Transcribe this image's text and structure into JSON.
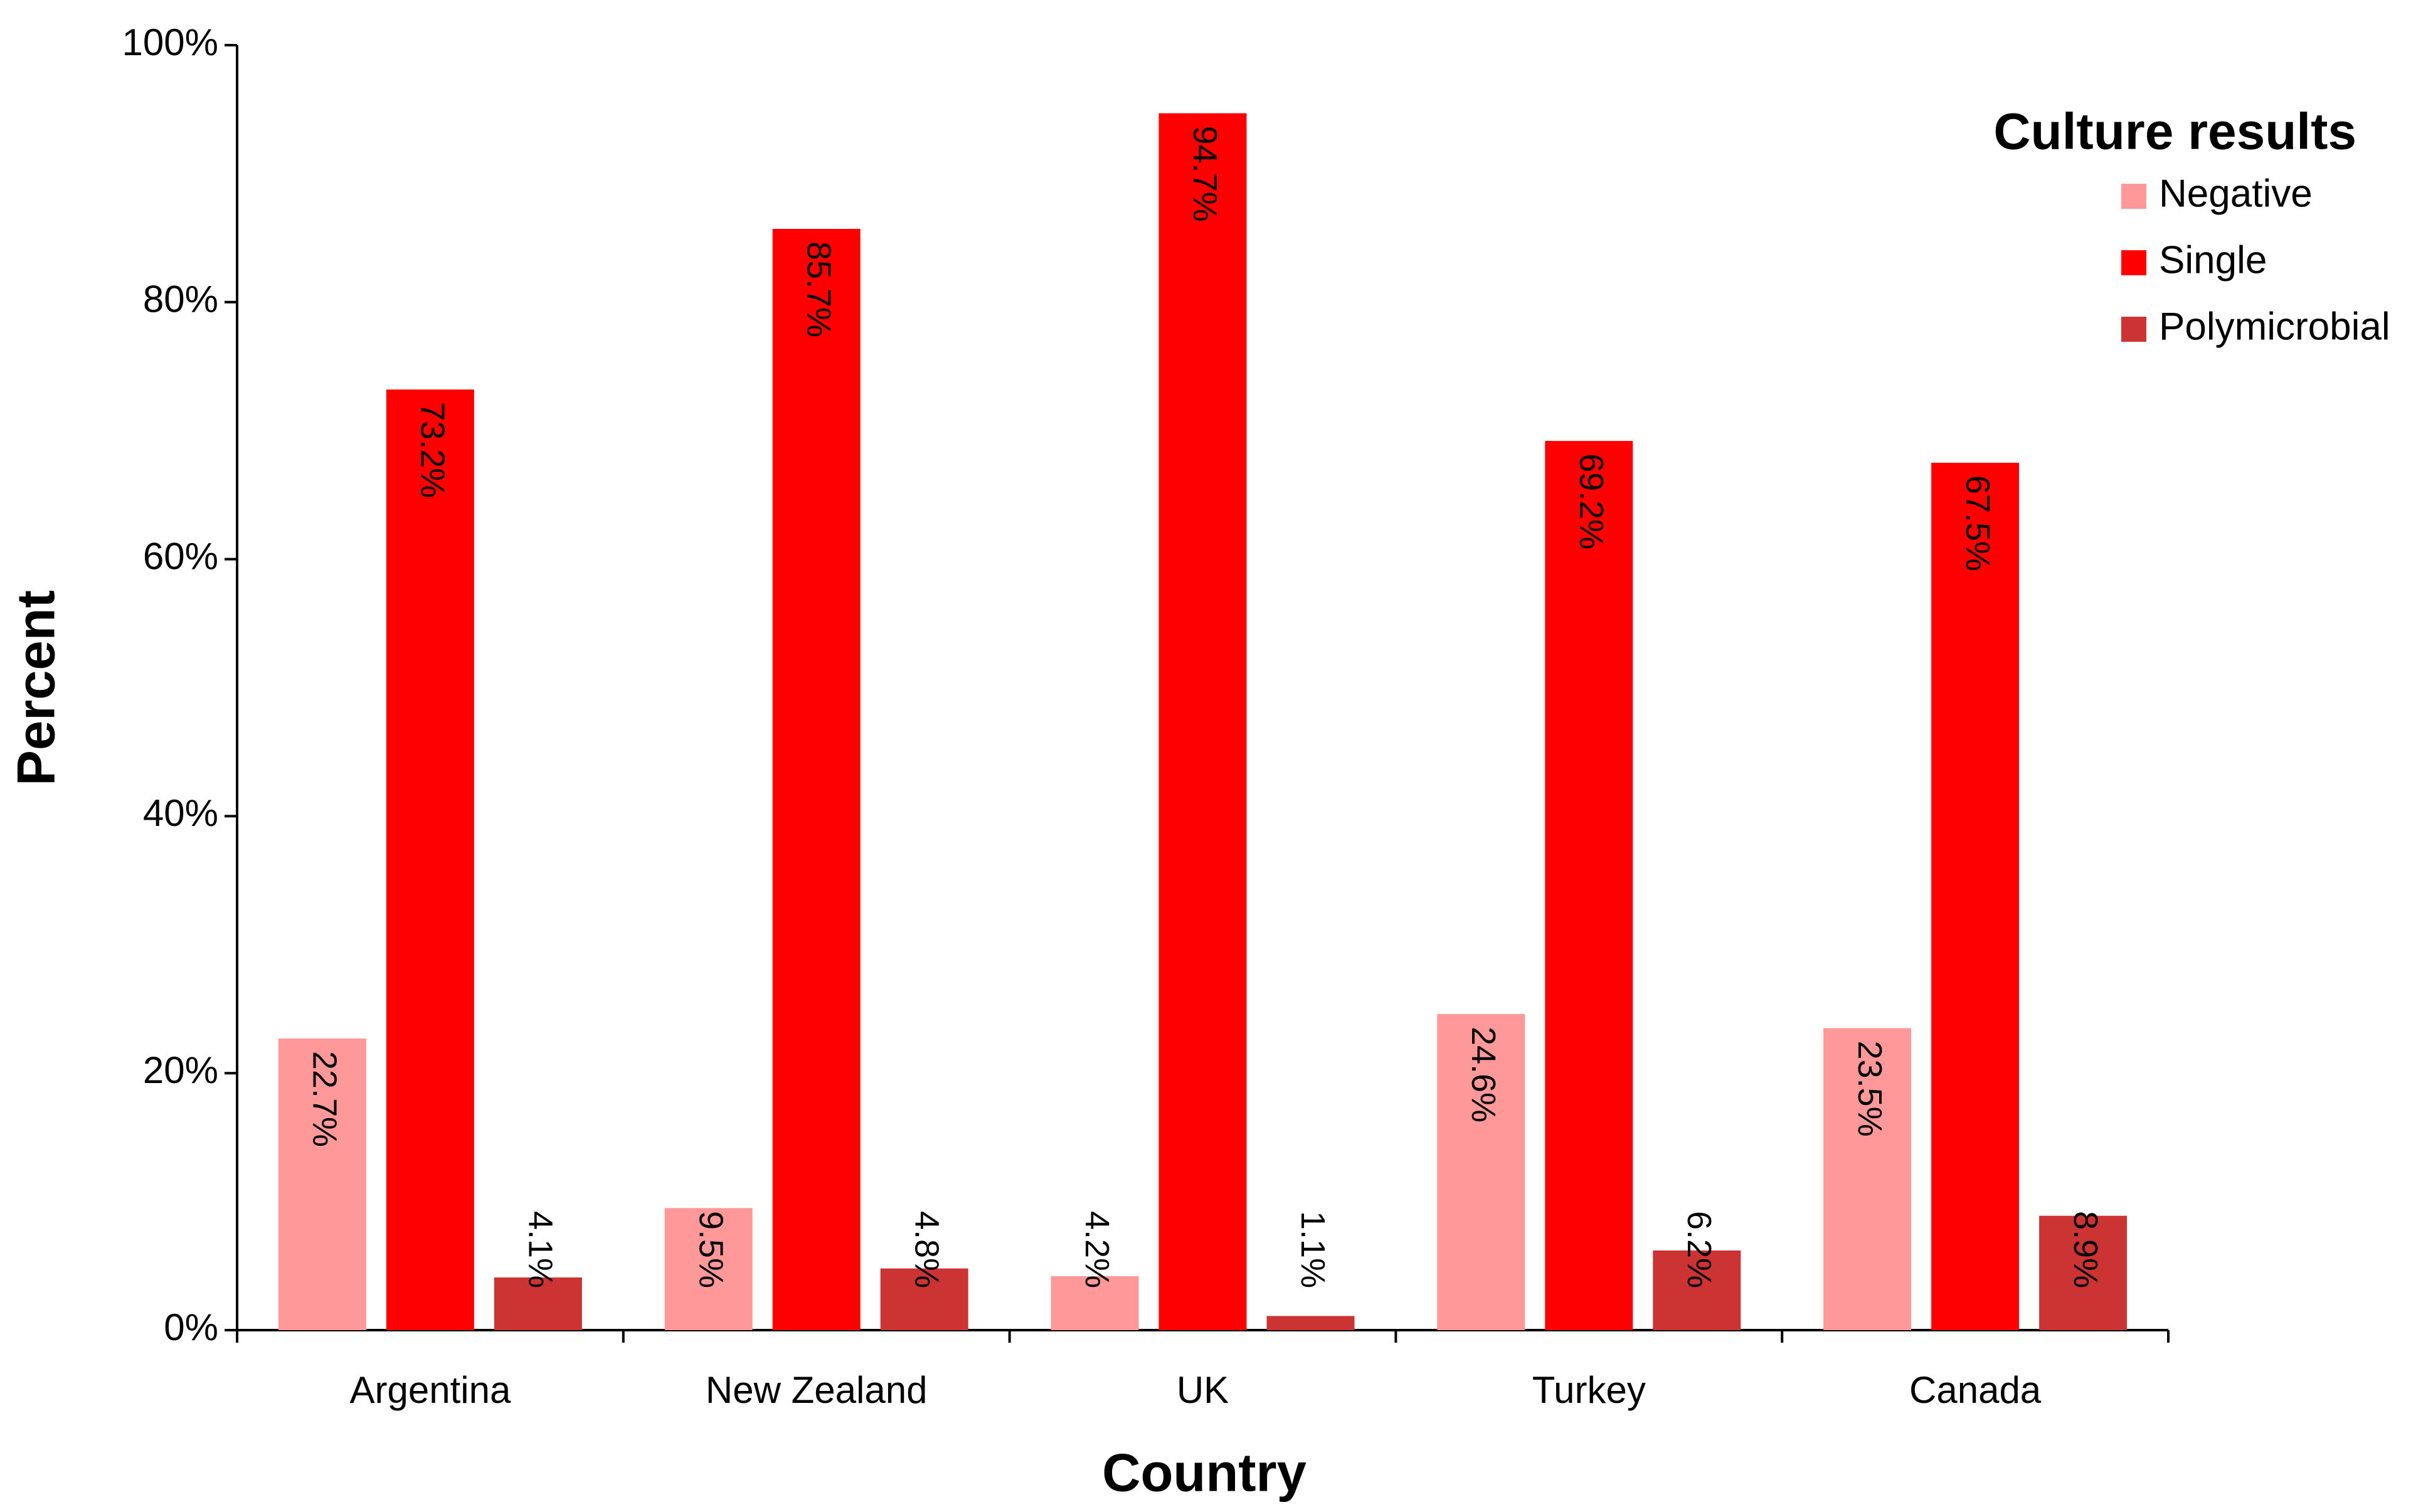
{
  "chart_data": {
    "type": "bar",
    "x_label": "Country",
    "y_label": "Percent",
    "legend_title": "Culture results",
    "legend": "upper right",
    "categories": [
      "Argentina",
      "New Zealand",
      "UK",
      "Turkey",
      "Canada"
    ],
    "series": [
      {
        "name": "Negative",
        "color": "#ff9999",
        "values": [
          22.7,
          9.5,
          4.2,
          24.6,
          23.5
        ],
        "value_labels": [
          "22.7%",
          "9.5%",
          "4.2%",
          "24.6%",
          "23.5%"
        ]
      },
      {
        "name": "Single",
        "color": "#ff0000",
        "values": [
          73.2,
          85.7,
          94.7,
          69.2,
          67.5
        ],
        "value_labels": [
          "73.2%",
          "85.7%",
          "94.7%",
          "69.2%",
          "67.5%"
        ]
      },
      {
        "name": "Polymicrobial",
        "color": "#cc3333",
        "values": [
          4.1,
          4.8,
          1.1,
          6.2,
          8.9
        ],
        "value_labels": [
          "4.1%",
          "4.8%",
          "1.1%",
          "6.2%",
          "8.9%"
        ]
      }
    ],
    "ylim": [
      0,
      100
    ],
    "yticks": [
      {
        "value": 0,
        "label": "0%"
      },
      {
        "value": 20,
        "label": "20%"
      },
      {
        "value": 40,
        "label": "40%"
      },
      {
        "value": 60,
        "label": "60%"
      },
      {
        "value": 80,
        "label": "80%"
      },
      {
        "value": 100,
        "label": "100%"
      }
    ],
    "grid": false
  }
}
